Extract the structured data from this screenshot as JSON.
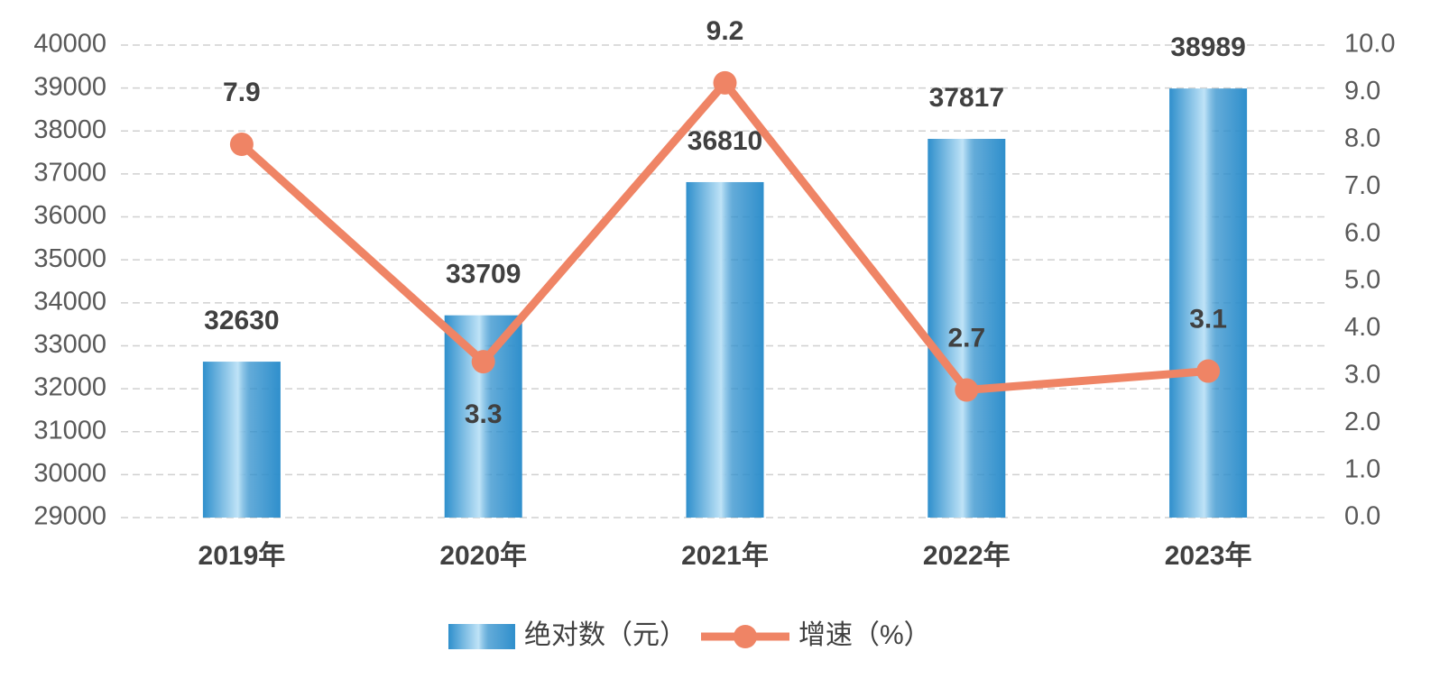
{
  "chart_data": {
    "type": "combo",
    "categories": [
      "2019年",
      "2020年",
      "2021年",
      "2022年",
      "2023年"
    ],
    "series": [
      {
        "name": "绝对数（元）",
        "type": "bar",
        "color": "#2f8fcc",
        "values": [
          32630,
          33709,
          36810,
          37817,
          38989
        ]
      },
      {
        "name": "增速（%）",
        "type": "line",
        "axis": "y2",
        "color": "#ef8465",
        "values": [
          7.9,
          3.3,
          9.2,
          2.7,
          3.1
        ]
      }
    ],
    "ylim": [
      29000,
      40000
    ],
    "yticks": [
      29000,
      30000,
      31000,
      32000,
      33000,
      34000,
      35000,
      36000,
      37000,
      38000,
      39000,
      40000
    ],
    "y2lim": [
      0,
      10
    ],
    "y2ticks": [
      {
        "value": 0,
        "label": "0.0"
      },
      {
        "value": 1,
        "label": "1.0"
      },
      {
        "value": 2,
        "label": "2.0"
      },
      {
        "value": 3,
        "label": "3.0"
      },
      {
        "value": 4,
        "label": "4.0"
      },
      {
        "value": 5,
        "label": "5.0"
      },
      {
        "value": 6,
        "label": "6.0"
      },
      {
        "value": 7,
        "label": "7.0"
      },
      {
        "value": 8,
        "label": "8.0"
      },
      {
        "value": 9,
        "label": "9.0"
      },
      {
        "value": 10,
        "label": "10.0"
      }
    ],
    "grid": true,
    "legend": "bottom"
  }
}
